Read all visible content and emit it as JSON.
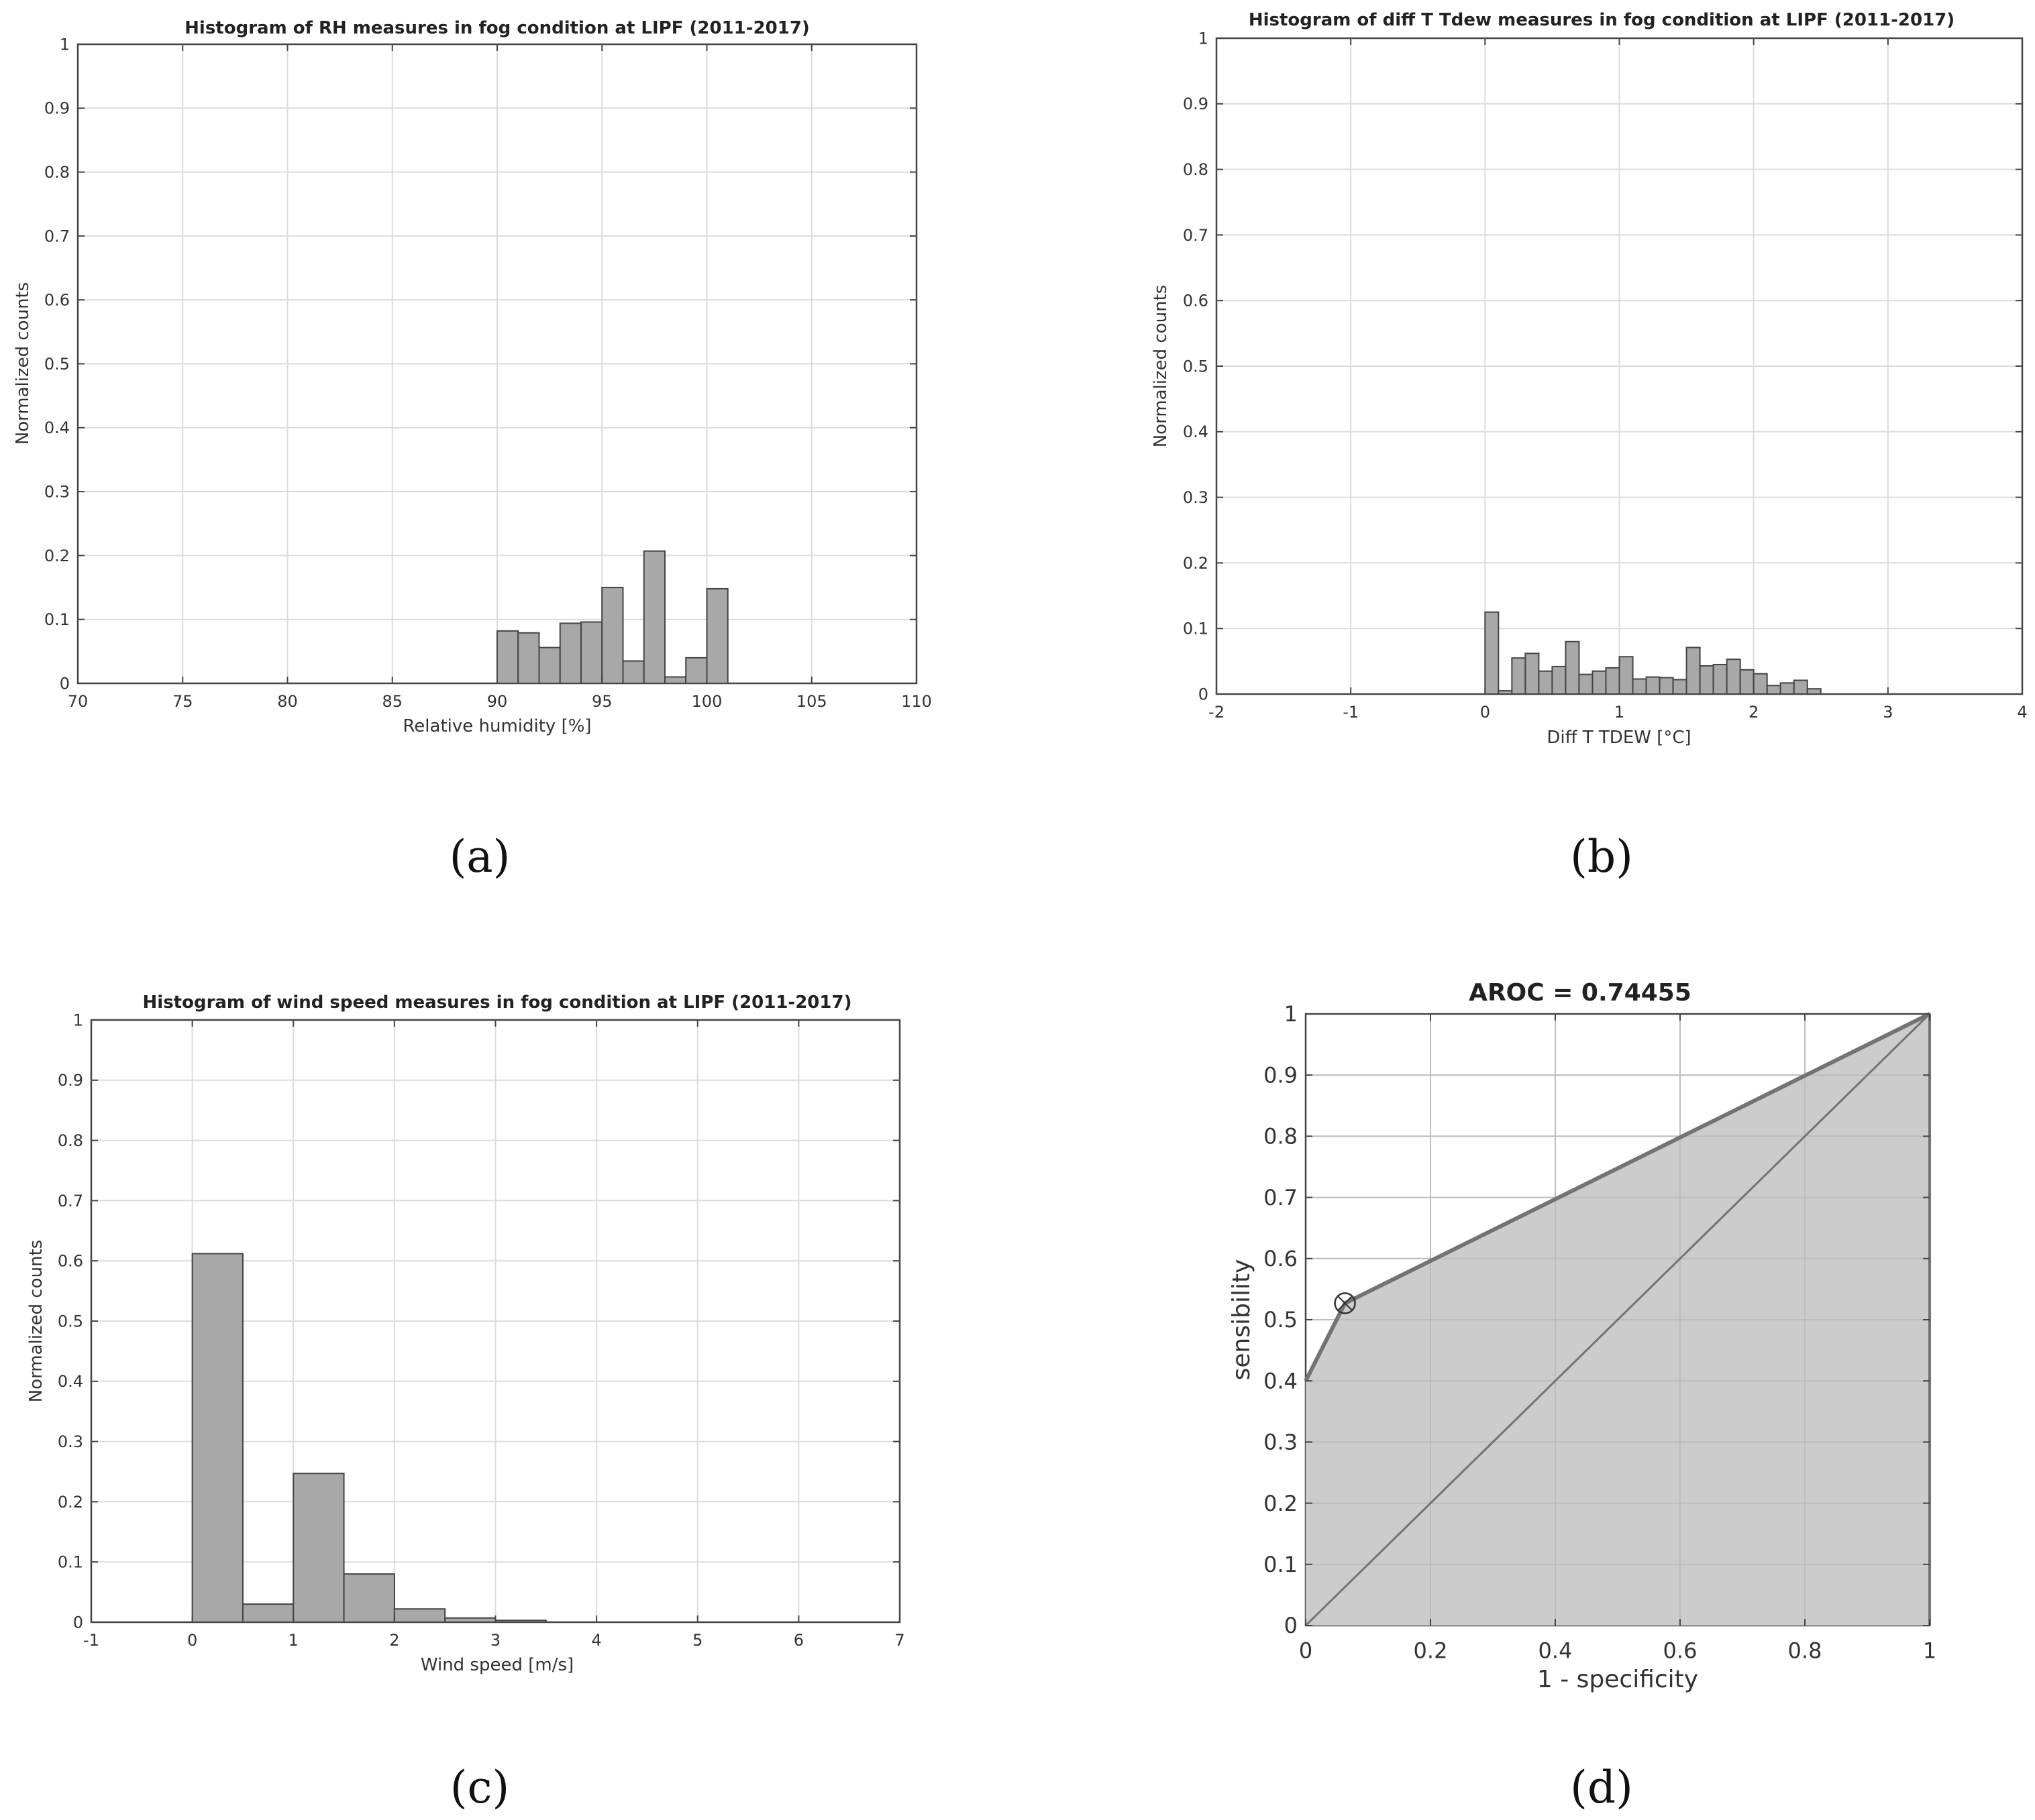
{
  "figure": {
    "panel_labels": [
      "(a)",
      "(b)",
      "(c)",
      "(d)"
    ]
  },
  "colors": {
    "bar_fill": "#a8a8a8",
    "bar_edge": "#444444",
    "roc_fill": "#cccccc",
    "roc_line": "#737373",
    "grid": "#dcdcdc"
  },
  "chart_data": [
    {
      "id": "a",
      "type": "bar",
      "title": "Histogram of RH measures in fog condition at LIPF (2011-2017)",
      "xlabel": "Relative humidity [%]",
      "ylabel": "Normalized counts",
      "xlim": [
        70,
        110
      ],
      "ylim": [
        0,
        1
      ],
      "xticks": [
        70,
        75,
        80,
        85,
        90,
        95,
        100,
        105,
        110
      ],
      "yticks": [
        0,
        0.1,
        0.2,
        0.3,
        0.4,
        0.5,
        0.6,
        0.7,
        0.8,
        0.9,
        1
      ],
      "ytick_labels": [
        "0",
        "0.1",
        "0.2",
        "0.3",
        "0.4",
        "0.5",
        "0.6",
        "0.7",
        "0.8",
        "0.9",
        "1"
      ],
      "grid": true,
      "bin_width": 1,
      "bin_starts": [
        90,
        91,
        92,
        93,
        94,
        95,
        96,
        97,
        98,
        99,
        100
      ],
      "values": [
        0.082,
        0.079,
        0.056,
        0.094,
        0.096,
        0.15,
        0.035,
        0.207,
        0.01,
        0.04,
        0.148
      ]
    },
    {
      "id": "b",
      "type": "bar",
      "title": "Histogram of diff T Tdew measures in fog condition at LIPF (2011-2017)",
      "xlabel": "Diff T TDEW [°C]",
      "ylabel": "Normalized counts",
      "xlim": [
        -2,
        4
      ],
      "ylim": [
        0,
        1
      ],
      "xticks": [
        -2,
        -1,
        0,
        1,
        2,
        3,
        4
      ],
      "yticks": [
        0,
        0.1,
        0.2,
        0.3,
        0.4,
        0.5,
        0.6,
        0.7,
        0.8,
        0.9,
        1
      ],
      "ytick_labels": [
        "0",
        "0.1",
        "0.2",
        "0.3",
        "0.4",
        "0.5",
        "0.6",
        "0.7",
        "0.8",
        "0.9",
        "1"
      ],
      "grid": true,
      "bin_width": 0.1,
      "bin_starts": [
        0,
        0.1,
        0.2,
        0.3,
        0.4,
        0.5,
        0.6,
        0.7,
        0.8,
        0.9,
        1.0,
        1.1,
        1.2,
        1.3,
        1.4,
        1.5,
        1.6,
        1.7,
        1.8,
        1.9,
        2.0,
        2.1,
        2.2,
        2.3,
        2.4
      ],
      "values": [
        0.125,
        0.005,
        0.055,
        0.062,
        0.035,
        0.042,
        0.08,
        0.03,
        0.035,
        0.04,
        0.057,
        0.023,
        0.026,
        0.025,
        0.022,
        0.071,
        0.043,
        0.045,
        0.053,
        0.037,
        0.031,
        0.013,
        0.017,
        0.021,
        0.008
      ]
    },
    {
      "id": "c",
      "type": "bar",
      "title": "Histogram of wind speed measures in fog condition at LIPF (2011-2017)",
      "xlabel": "Wind speed [m/s]",
      "ylabel": "Normalized counts",
      "xlim": [
        -1,
        7
      ],
      "ylim": [
        0,
        1
      ],
      "xticks": [
        -1,
        0,
        1,
        2,
        3,
        4,
        5,
        6,
        7
      ],
      "yticks": [
        0,
        0.1,
        0.2,
        0.3,
        0.4,
        0.5,
        0.6,
        0.7,
        0.8,
        0.9,
        1
      ],
      "ytick_labels": [
        "0",
        "0.1",
        "0.2",
        "0.3",
        "0.4",
        "0.5",
        "0.6",
        "0.7",
        "0.8",
        "0.9",
        "1"
      ],
      "grid": true,
      "bin_width": 0.5,
      "bin_starts": [
        0,
        0.5,
        1.0,
        1.5,
        2.0,
        2.5,
        3.0
      ],
      "values": [
        0.612,
        0.03,
        0.247,
        0.08,
        0.022,
        0.007,
        0.003
      ]
    },
    {
      "id": "d",
      "type": "area",
      "title": "AROC = 0.74455",
      "xlabel": "1 - specificity",
      "ylabel": "sensibility",
      "xlim": [
        0,
        1
      ],
      "ylim": [
        0,
        1
      ],
      "xticks": [
        0,
        0.2,
        0.4,
        0.6,
        0.8,
        1
      ],
      "xtick_labels": [
        "0",
        "0.2",
        "0.4",
        "0.6",
        "0.8",
        "1"
      ],
      "yticks": [
        0,
        0.1,
        0.2,
        0.3,
        0.4,
        0.5,
        0.6,
        0.7,
        0.8,
        0.9,
        1
      ],
      "ytick_labels": [
        "0",
        "0.1",
        "0.2",
        "0.3",
        "0.4",
        "0.5",
        "0.6",
        "0.7",
        "0.8",
        "0.9",
        "1"
      ],
      "grid": true,
      "roc_x": [
        0,
        0,
        0.063,
        1,
        1
      ],
      "roc_y": [
        0,
        0.4,
        0.527,
        1,
        0
      ],
      "diagonal": [
        [
          0,
          0
        ],
        [
          1,
          1
        ]
      ],
      "optimal_point": {
        "x": 0.063,
        "y": 0.527
      }
    }
  ]
}
